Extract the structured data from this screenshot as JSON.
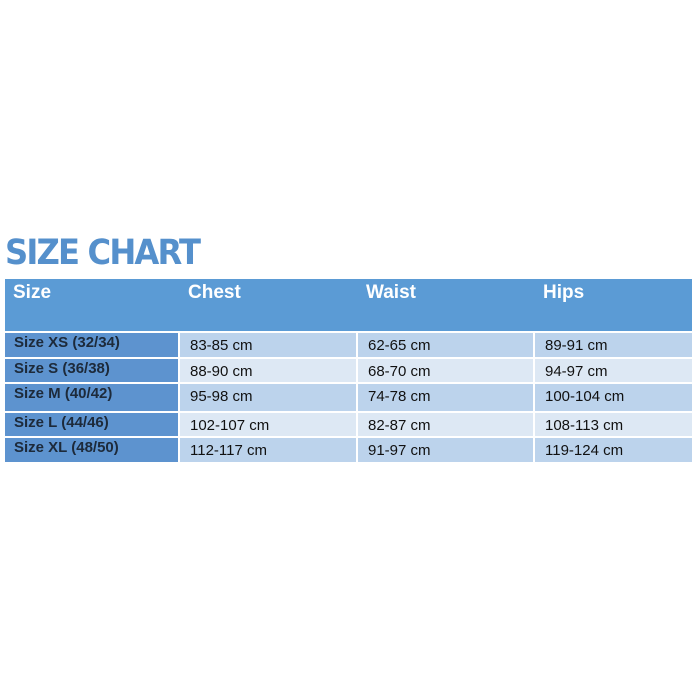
{
  "title": "SIZE CHART",
  "colors": {
    "title": "#5590cc",
    "header": "#5b9bd5",
    "size_column": "#5d93cf",
    "row_dark": "#bcd3ec",
    "row_light": "#dde8f4"
  },
  "table": {
    "headers": [
      "Size",
      "Chest",
      "Waist",
      "Hips"
    ],
    "rows": [
      [
        "Size XS (32/34)",
        "83-85 cm",
        "62-65 cm",
        "89-91 cm"
      ],
      [
        "Size S (36/38)",
        "88-90 cm",
        "68-70 cm",
        "94-97 cm"
      ],
      [
        "Size M (40/42)",
        "95-98 cm",
        "74-78 cm",
        "100-104 cm"
      ],
      [
        "Size L (44/46)",
        "102-107 cm",
        "82-87 cm",
        "108-113 cm"
      ],
      [
        "Size XL (48/50)",
        "112-117 cm",
        "91-97 cm",
        "119-124 cm"
      ]
    ]
  }
}
